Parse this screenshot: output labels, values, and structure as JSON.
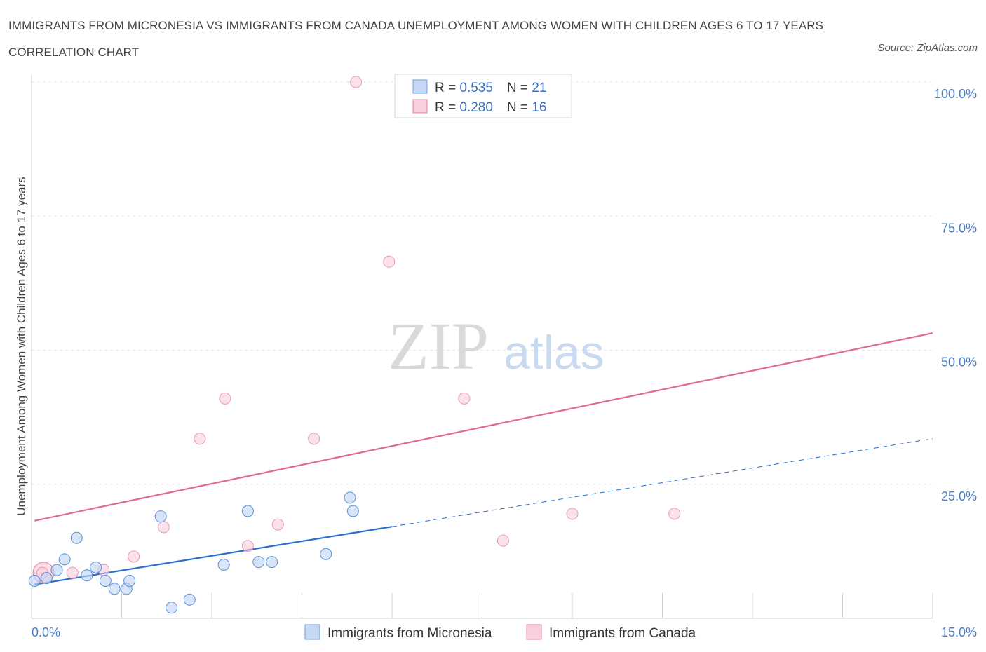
{
  "title": "IMMIGRANTS FROM MICRONESIA VS IMMIGRANTS FROM CANADA UNEMPLOYMENT AMONG WOMEN WITH CHILDREN AGES 6 TO 17 YEARS CORRELATION CHART",
  "source": "Source: ZipAtlas.com",
  "watermark": {
    "zip": "ZIP",
    "atlas": "atlas"
  },
  "colors": {
    "micronesia": "#6fa0e0",
    "canada": "#e87fa3",
    "micronesia_line": "#2b6fce",
    "canada_line": "#e06a93",
    "tick": "#4a7cc4"
  },
  "stats": {
    "micronesia": {
      "r_label": "R = ",
      "r": "0.535",
      "n_label": "N = ",
      "n": "21"
    },
    "canada": {
      "r_label": "R = ",
      "r": "0.280",
      "n_label": "N = ",
      "n": "16"
    }
  },
  "chart_data": {
    "type": "scatter",
    "title": "IMMIGRANTS FROM MICRONESIA VS IMMIGRANTS FROM CANADA UNEMPLOYMENT AMONG WOMEN WITH CHILDREN AGES 6 TO 17 YEARS CORRELATION CHART",
    "xlabel": "",
    "ylabel": "Unemployment Among Women with Children Ages 6 to 17 years",
    "xlim": [
      0,
      15
    ],
    "ylim": [
      0,
      100
    ],
    "x_tick_labels": [
      "0.0%",
      "15.0%"
    ],
    "y_ticks": [
      25,
      50,
      75,
      100
    ],
    "y_tick_labels": [
      "25.0%",
      "50.0%",
      "75.0%",
      "100.0%"
    ],
    "grid": true,
    "legend_position": "top-center",
    "series": [
      {
        "name": "Immigrants from Micronesia",
        "points": [
          [
            0.05,
            7.0
          ],
          [
            0.25,
            7.5
          ],
          [
            0.42,
            9.0
          ],
          [
            0.55,
            11.0
          ],
          [
            0.75,
            15.0
          ],
          [
            0.92,
            8.0
          ],
          [
            1.07,
            9.5
          ],
          [
            1.23,
            7.0
          ],
          [
            1.38,
            5.5
          ],
          [
            1.58,
            5.5
          ],
          [
            1.63,
            7.0
          ],
          [
            2.15,
            19.0
          ],
          [
            2.33,
            2.0
          ],
          [
            2.63,
            3.5
          ],
          [
            3.2,
            10.0
          ],
          [
            3.6,
            20.0
          ],
          [
            3.78,
            10.5
          ],
          [
            4.0,
            10.5
          ],
          [
            4.9,
            12.0
          ],
          [
            5.3,
            22.5
          ],
          [
            5.35,
            20.0
          ]
        ],
        "trend_solid": [
          [
            0.05,
            6.3
          ],
          [
            6.0,
            17.1
          ]
        ],
        "trend_dashed": [
          [
            6.0,
            17.1
          ],
          [
            15.0,
            33.5
          ]
        ]
      },
      {
        "name": "Immigrants from Canada",
        "points": [
          [
            0.18,
            8.5
          ],
          [
            0.68,
            8.5
          ],
          [
            1.2,
            9.0
          ],
          [
            1.7,
            11.5
          ],
          [
            2.2,
            17.0
          ],
          [
            2.8,
            33.5
          ],
          [
            3.22,
            41.0
          ],
          [
            3.6,
            13.5
          ],
          [
            4.1,
            17.5
          ],
          [
            4.7,
            33.5
          ],
          [
            5.4,
            100.0
          ],
          [
            5.95,
            66.5
          ],
          [
            7.2,
            41.0
          ],
          [
            7.85,
            14.5
          ],
          [
            9.0,
            19.5
          ],
          [
            10.7,
            19.5
          ]
        ],
        "trend_solid": [
          [
            0.05,
            18.2
          ],
          [
            15.0,
            53.2
          ]
        ]
      }
    ]
  },
  "legend": {
    "micronesia": "Immigrants from Micronesia",
    "canada": "Immigrants from Canada"
  }
}
